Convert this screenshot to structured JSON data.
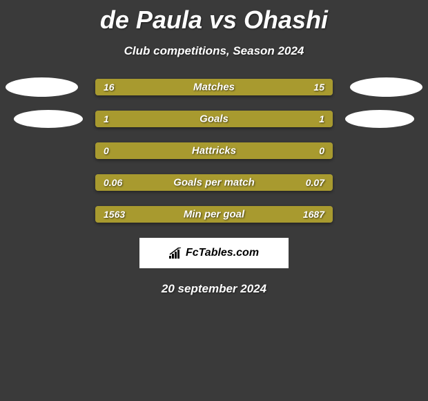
{
  "title": "de Paula vs Ohashi",
  "subtitle": "Club competitions, Season 2024",
  "date": "20 september 2024",
  "logo_text": "FcTables.com",
  "colors": {
    "background": "#3a3a3a",
    "bar_fill": "#a89a2f",
    "bar_empty": "#666666",
    "ellipse": "#ffffff",
    "text": "#ffffff"
  },
  "stats": [
    {
      "label": "Matches",
      "left_value": "16",
      "right_value": "15",
      "left_pct": 100,
      "right_pct": 0,
      "show_left_ellipse": true,
      "show_right_ellipse": true,
      "ellipse_style": 1
    },
    {
      "label": "Goals",
      "left_value": "1",
      "right_value": "1",
      "left_pct": 100,
      "right_pct": 0,
      "show_left_ellipse": true,
      "show_right_ellipse": true,
      "ellipse_style": 2
    },
    {
      "label": "Hattricks",
      "left_value": "0",
      "right_value": "0",
      "left_pct": 100,
      "right_pct": 0,
      "show_left_ellipse": false,
      "show_right_ellipse": false,
      "ellipse_style": 0
    },
    {
      "label": "Goals per match",
      "left_value": "0.06",
      "right_value": "0.07",
      "left_pct": 100,
      "right_pct": 0,
      "show_left_ellipse": false,
      "show_right_ellipse": false,
      "ellipse_style": 0
    },
    {
      "label": "Min per goal",
      "left_value": "1563",
      "right_value": "1687",
      "left_pct": 100,
      "right_pct": 0,
      "show_left_ellipse": false,
      "show_right_ellipse": false,
      "ellipse_style": 0
    }
  ]
}
